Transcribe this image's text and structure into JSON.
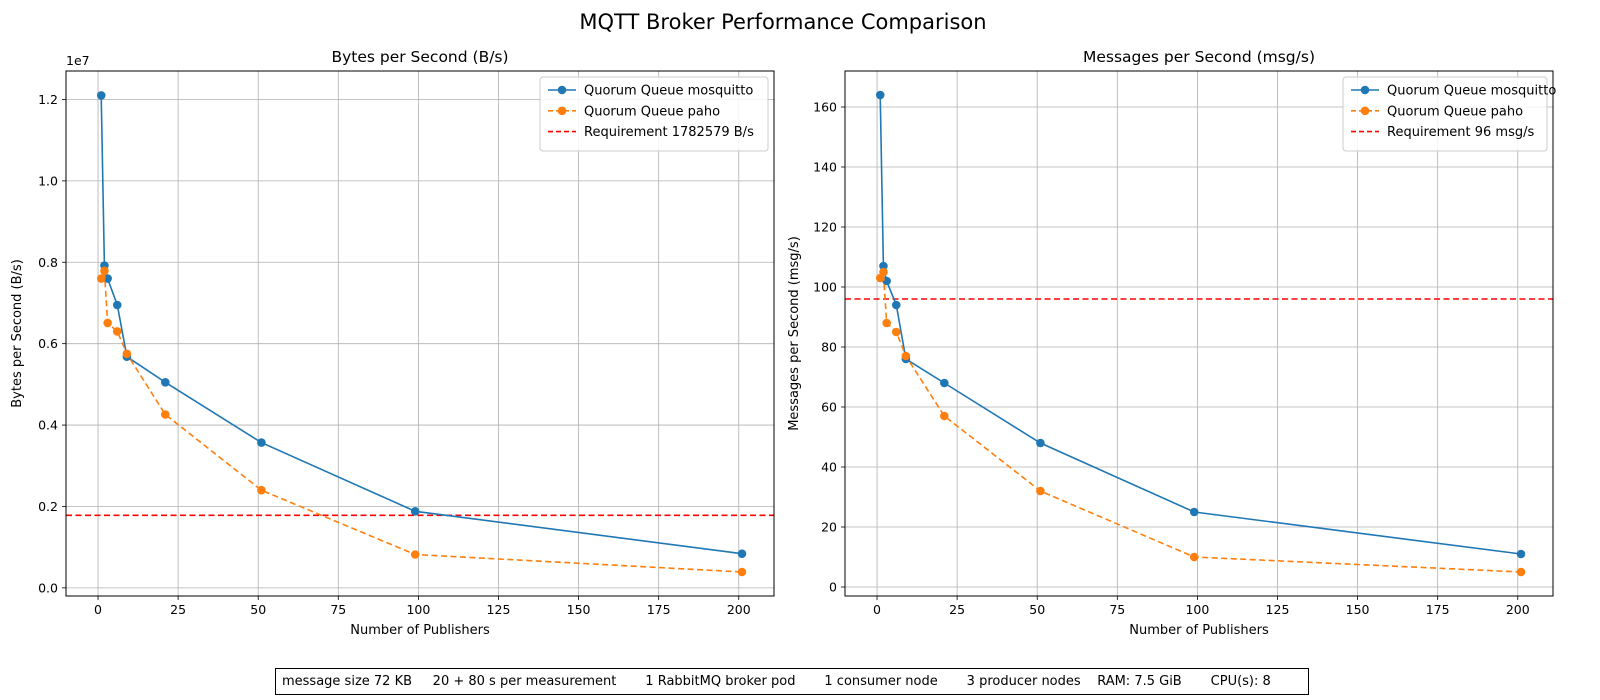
{
  "figure": {
    "title": "MQTT Broker Performance Comparison",
    "footer_text": "message size 72 KB     20 + 80 s per measurement       1 RabbitMQ broker pod       1 consumer node       3 producer nodes    RAM: 7.5 GiB       CPU(s): 8"
  },
  "colors": {
    "mosquitto": "#1f77b4",
    "paho": "#ff7f0e",
    "requirement": "#ff0000",
    "grid": "#b0b0b0"
  },
  "chart_data": [
    {
      "type": "line",
      "title": "Bytes per Second (B/s)",
      "xlabel": "Number of Publishers",
      "ylabel": "Bytes per Second (B/s)",
      "y_offset_label": "1e7",
      "xlim": [
        -10,
        211
      ],
      "ylim": [
        -200000,
        12700000
      ],
      "xticks": [
        0,
        25,
        50,
        75,
        100,
        125,
        150,
        175,
        200
      ],
      "yticks": [
        0,
        2000000,
        4000000,
        6000000,
        8000000,
        10000000,
        12000000
      ],
      "ytick_labels": [
        "0.0",
        "0.2",
        "0.4",
        "0.6",
        "0.8",
        "1.0",
        "1.2"
      ],
      "grid": true,
      "legend_position": "top-right",
      "series": [
        {
          "name": "Quorum Queue mosquitto",
          "style": "solid",
          "marker": "circle",
          "x": [
            1,
            2,
            3,
            6,
            9,
            21,
            51,
            99,
            201
          ],
          "y": [
            12100000,
            7920000,
            7600000,
            6950000,
            5680000,
            5050000,
            3570000,
            1880000,
            840000
          ]
        },
        {
          "name": "Quorum Queue paho",
          "style": "dashed",
          "marker": "circle",
          "x": [
            1,
            2,
            3,
            6,
            9,
            21,
            51,
            99,
            201
          ],
          "y": [
            7600000,
            7790000,
            6510000,
            6300000,
            5750000,
            4260000,
            2400000,
            820000,
            390000
          ]
        }
      ],
      "hlines": [
        {
          "name": "Requirement 1782579 B/s",
          "y": 1782579,
          "style": "dashed"
        }
      ]
    },
    {
      "type": "line",
      "title": "Messages per Second (msg/s)",
      "xlabel": "Number of Publishers",
      "ylabel": "Messages per Second (msg/s)",
      "y_offset_label": "",
      "xlim": [
        -10,
        211
      ],
      "ylim": [
        -3,
        172
      ],
      "xticks": [
        0,
        25,
        50,
        75,
        100,
        125,
        150,
        175,
        200
      ],
      "yticks": [
        0,
        20,
        40,
        60,
        80,
        100,
        120,
        140,
        160
      ],
      "ytick_labels": [
        "0",
        "20",
        "40",
        "60",
        "80",
        "100",
        "120",
        "140",
        "160"
      ],
      "grid": true,
      "legend_position": "top-right",
      "series": [
        {
          "name": "Quorum Queue mosquitto",
          "style": "solid",
          "marker": "circle",
          "x": [
            1,
            2,
            3,
            6,
            9,
            21,
            51,
            99,
            201
          ],
          "y": [
            164,
            107,
            102,
            94,
            76,
            68,
            48,
            25,
            11
          ]
        },
        {
          "name": "Quorum Queue paho",
          "style": "dashed",
          "marker": "circle",
          "x": [
            1,
            2,
            3,
            6,
            9,
            21,
            51,
            99,
            201
          ],
          "y": [
            103,
            105,
            88,
            85,
            77,
            57,
            32,
            10,
            5
          ]
        }
      ],
      "hlines": [
        {
          "name": "Requirement 96 msg/s",
          "y": 96,
          "style": "dashed"
        }
      ]
    }
  ]
}
